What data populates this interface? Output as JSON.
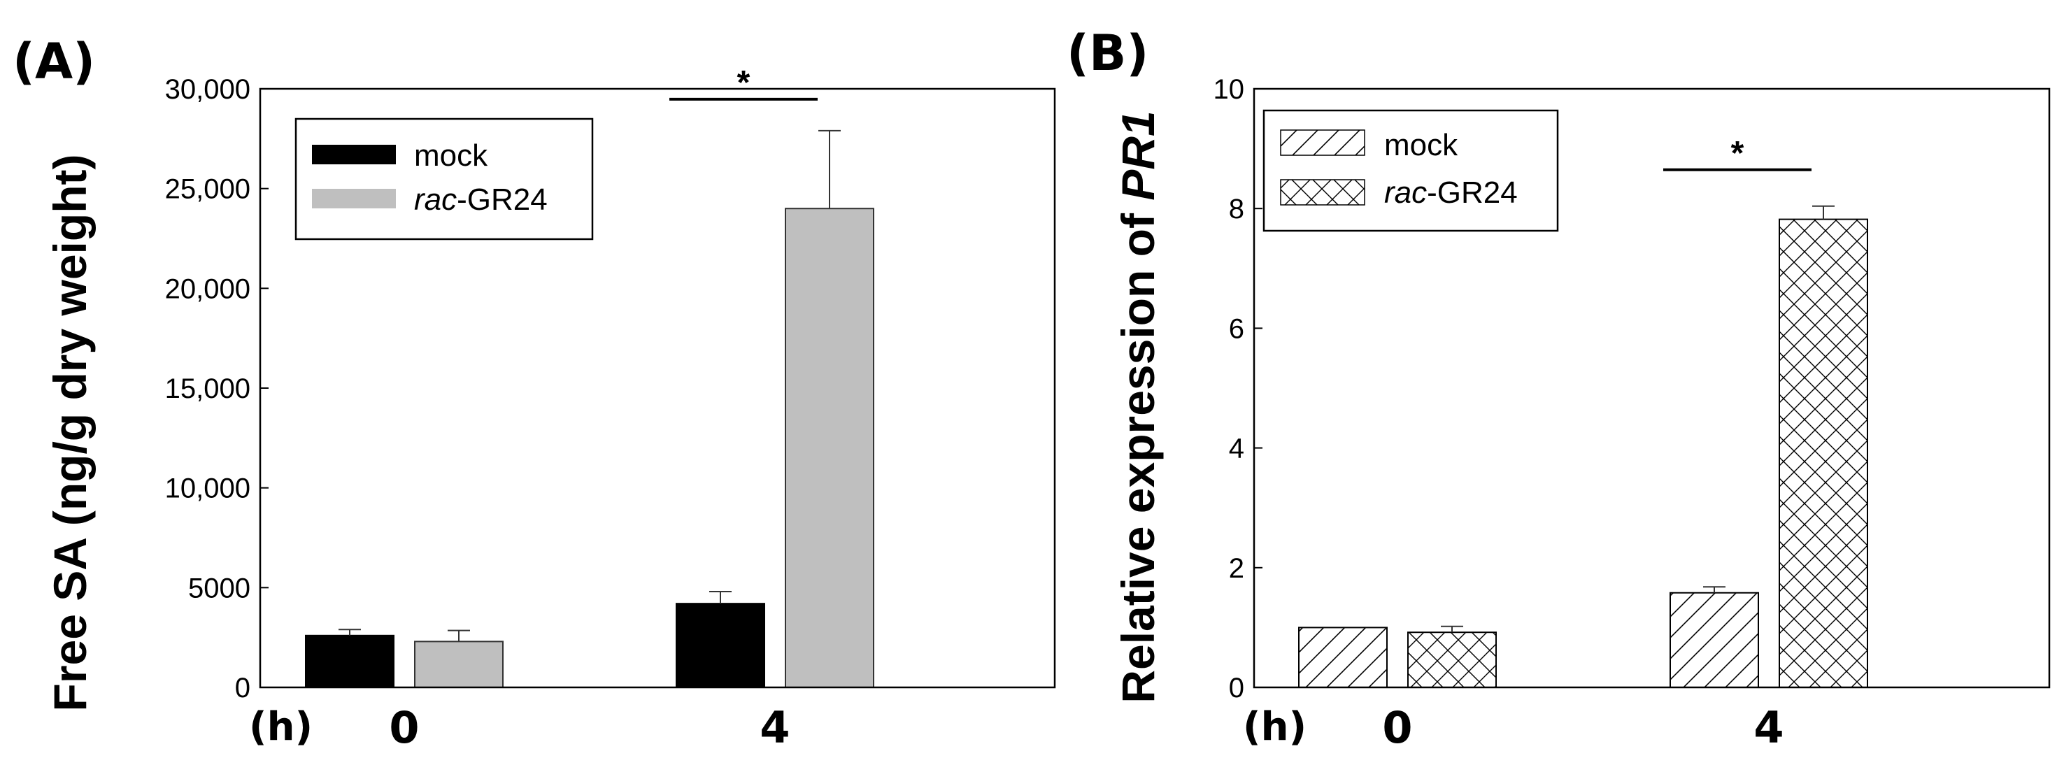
{
  "chart_data": [
    {
      "panel_label": "(A)",
      "type": "bar",
      "ylabel": "Free SA (ng/g dry weight)",
      "xunit_label": "(h)",
      "categories": [
        "0",
        "4"
      ],
      "ylim": [
        0,
        30000
      ],
      "yticks": [
        "0",
        "5000",
        "10,000",
        "15,000",
        "20,000",
        "25,000",
        "30,000"
      ],
      "ytick_values": [
        0,
        5000,
        10000,
        15000,
        20000,
        25000,
        30000
      ],
      "series": [
        {
          "name": "mock",
          "values": [
            2600,
            4200
          ],
          "errors": [
            300,
            600
          ],
          "fill": "#000000"
        },
        {
          "name": "rac-GR24",
          "values": [
            2300,
            24000
          ],
          "errors": [
            550,
            3900
          ],
          "fill": "#bfbfbf"
        }
      ],
      "legend": {
        "placement": "top-left",
        "entries": [
          {
            "italic": "",
            "text": "mock"
          },
          {
            "italic": "rac",
            "text": "-GR24"
          }
        ]
      },
      "significance": [
        {
          "category": "4",
          "label": "*"
        }
      ],
      "grid": false
    },
    {
      "panel_label": "(B)",
      "type": "bar",
      "ylabel_prefix": "Relative expression of ",
      "ylabel_gene": "PR1",
      "xunit_label": "(h)",
      "categories": [
        "0",
        "4"
      ],
      "ylim": [
        0,
        10
      ],
      "yticks": [
        "0",
        "2",
        "4",
        "6",
        "8",
        "10"
      ],
      "ytick_values": [
        0,
        2,
        4,
        6,
        8,
        10
      ],
      "series": [
        {
          "name": "mock",
          "values": [
            1.0,
            1.58
          ],
          "errors": [
            0,
            0.1
          ],
          "pattern": "diagonal-hatch"
        },
        {
          "name": "rac-GR24",
          "values": [
            0.92,
            7.82
          ],
          "errors": [
            0.1,
            0.22
          ],
          "pattern": "cross-hatch"
        }
      ],
      "legend": {
        "placement": "top-left",
        "entries": [
          {
            "italic": "",
            "text": "mock"
          },
          {
            "italic": "rac",
            "text": "-GR24"
          }
        ]
      },
      "significance": [
        {
          "category": "4",
          "label": "*"
        }
      ],
      "grid": false
    }
  ]
}
